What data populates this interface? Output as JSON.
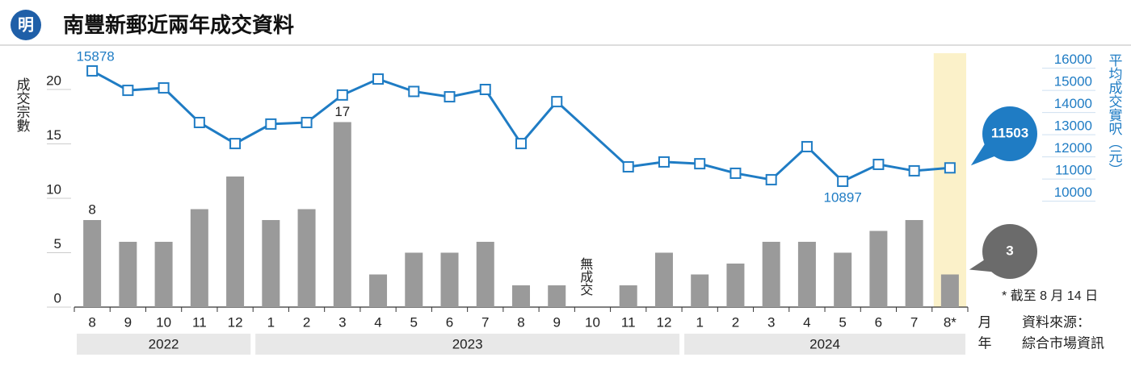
{
  "chart_data": {
    "type": "bar-line",
    "logo": "明",
    "title": "南豐新郵近兩年成交資料",
    "ylabel": "成交宗數",
    "y2label": "平均成交實呎（元）",
    "categories": [
      "8",
      "9",
      "10",
      "11",
      "12",
      "1",
      "2",
      "3",
      "4",
      "5",
      "6",
      "7",
      "8",
      "9",
      "10",
      "11",
      "12",
      "1",
      "2",
      "3",
      "4",
      "5",
      "6",
      "7",
      "8*"
    ],
    "years": [
      "2022",
      "2023",
      "2024"
    ],
    "month_label": "月",
    "year_label": "年",
    "series": [
      {
        "name": "成交宗數",
        "type": "bar",
        "color": "#9a9a9a",
        "values": [
          8,
          6,
          6,
          9,
          12,
          8,
          9,
          17,
          3,
          5,
          5,
          6,
          2,
          2,
          0,
          2,
          5,
          3,
          4,
          6,
          6,
          5,
          7,
          8,
          3
        ],
        "labeled": [
          0,
          7
        ],
        "callout": 24,
        "callout_color": "#6b6b6b"
      },
      {
        "name": "平均成交實呎",
        "type": "line",
        "axis": "y2",
        "color": "#1f7cc4",
        "values": [
          15878,
          15000,
          15110,
          13550,
          12600,
          13480,
          13550,
          14790,
          15510,
          14950,
          14710,
          15040,
          12600,
          14490,
          null,
          11550,
          11770,
          11690,
          11260,
          10970,
          12460,
          10897,
          11660,
          11370,
          11503
        ],
        "labeled": [
          0,
          21
        ],
        "callout": 24,
        "callout_color": "#1f7cc4"
      }
    ],
    "no_data_label": "無成交",
    "highlight": 24,
    "highlight_color": "#fbf1c9",
    "ylim": [
      0,
      23.33
    ],
    "yticks": [
      0,
      5,
      10,
      15,
      20
    ],
    "y2lim": [
      5222,
      16676
    ],
    "y2ticks": [
      10000,
      11000,
      12000,
      13000,
      14000,
      15000,
      16000
    ],
    "footnote": "* 截至 8 月 14 日",
    "source_title": "資料來源：",
    "source": "綜合市場資訊"
  }
}
